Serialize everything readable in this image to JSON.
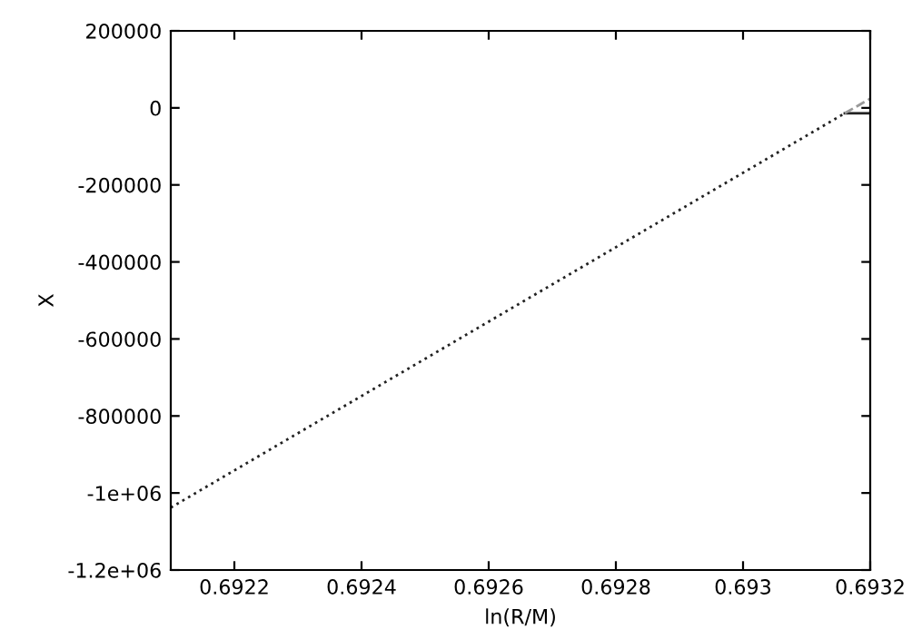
{
  "chart_data": {
    "type": "line",
    "xlabel": "ln(R/M)",
    "ylabel": "X",
    "xlim": [
      0.6921,
      0.6932
    ],
    "xticks": [
      0.6922,
      0.6924,
      0.6926,
      0.6928,
      0.693,
      0.6932
    ],
    "ylim": [
      -1200000,
      200000
    ],
    "yticks": [
      200000,
      0,
      -200000,
      -400000,
      -600000,
      -800000,
      {
        "value": -1000000,
        "label": "-1e+06"
      },
      {
        "value": -1200000,
        "label": "-1.2e+06"
      }
    ],
    "grid": false,
    "series": [
      {
        "color": "#222222",
        "line_style": "dotted",
        "x": [
          0.6921,
          0.69316
        ],
        "values": [
          -1038000,
          -14000
        ]
      },
      {
        "color": "#222222",
        "line_style": "solid",
        "x": [
          0.69316,
          0.6932
        ],
        "values": [
          -14000,
          -14000
        ]
      },
      {
        "color": "#999999",
        "line_style": "dashed",
        "x": [
          0.69316,
          0.6932
        ],
        "values": [
          -14000,
          24000
        ]
      }
    ]
  }
}
